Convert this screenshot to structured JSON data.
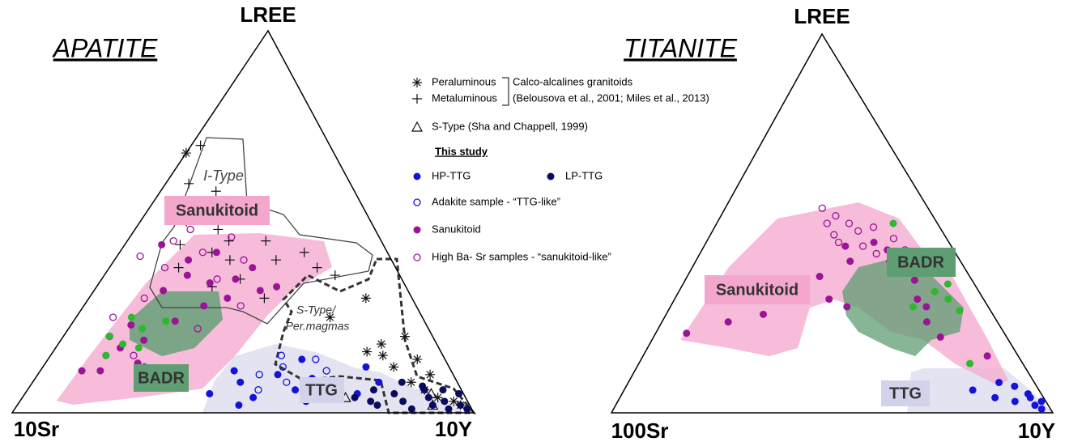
{
  "chart_data": [
    {
      "type": "ternary",
      "title": "APATITE",
      "corners": {
        "top": "LREE",
        "left": "10Sr",
        "right": "10Y"
      },
      "annotations": [
        "I-Type",
        "Sanukitoid",
        "S-Type/",
        "Per.magmas",
        "BADR",
        "TTG"
      ],
      "series": [
        {
          "name": "Peraluminous",
          "marker": "asterisk",
          "color": "#111111",
          "lree": [
            68,
            18,
            15,
            20,
            12,
            16,
            8,
            6,
            4,
            10,
            25,
            14,
            3,
            2,
            30
          ],
          "y": [
            0,
            70,
            72,
            74,
            76,
            68,
            82,
            86,
            90,
            85,
            55,
            80,
            94,
            96,
            60
          ]
        },
        {
          "name": "Metaluminous",
          "marker": "plus",
          "color": "#111111",
          "lree": [
            70,
            60,
            55,
            50,
            52,
            48,
            45,
            42,
            40,
            38,
            58,
            45,
            35,
            38,
            36,
            42,
            40,
            30,
            33,
            44
          ],
          "y": [
            2,
            5,
            8,
            10,
            15,
            18,
            22,
            20,
            25,
            15,
            12,
            30,
            30,
            45,
            50,
            40,
            35,
            38,
            25,
            12
          ]
        },
        {
          "name": "S-Type (Sha and Chappell, 1999)",
          "marker": "triangle-open",
          "color": "#111111",
          "lree": [
            7,
            4,
            2,
            5
          ],
          "y": [
            60,
            70,
            90,
            88
          ]
        },
        {
          "name": "HP-TTG",
          "marker": "circle",
          "color": "#1414d8",
          "lree": [
            5,
            8,
            4,
            10,
            6,
            3,
            7,
            12,
            5,
            9,
            14,
            2,
            11,
            4,
            8
          ],
          "y": [
            40,
            45,
            50,
            52,
            58,
            62,
            65,
            70,
            72,
            60,
            55,
            48,
            42,
            68,
            75
          ]
        },
        {
          "name": "LP-TTG",
          "marker": "circle",
          "color": "#0b0b5e",
          "lree": [
            4,
            6,
            2,
            5,
            3,
            7,
            1,
            4,
            2,
            6,
            3,
            1,
            5,
            2,
            1,
            8,
            3,
            6
          ],
          "y": [
            72,
            75,
            78,
            80,
            83,
            85,
            86,
            88,
            90,
            90,
            92,
            94,
            94,
            96,
            98,
            80,
            76,
            86
          ]
        },
        {
          "name": "Adakite sample - “TTG-like”",
          "marker": "circle-open",
          "color": "#1414d8",
          "lree": [
            10,
            12,
            8,
            14,
            6,
            11,
            15
          ],
          "y": [
            48,
            52,
            55,
            58,
            50,
            62,
            50
          ]
        },
        {
          "name": "Sanukitoid",
          "marker": "circle",
          "color": "#9c1496",
          "lree": [
            11,
            15,
            23,
            32,
            36,
            34,
            35,
            32,
            33,
            38,
            30,
            28,
            24,
            19,
            17,
            44,
            40,
            42,
            13,
            11
          ],
          "y": [
            9,
            12,
            13,
            15,
            18,
            24,
            29,
            36,
            39,
            31,
            30,
            26,
            22,
            18,
            14,
            8,
            16,
            21,
            20,
            13
          ]
        },
        {
          "name": "High Ba- Sr samples - “sanukitoid-like”",
          "marker": "circle-open",
          "color": "#9c1496",
          "lree": [
            41,
            45,
            38,
            25,
            20,
            30,
            42,
            48,
            35,
            15,
            12,
            28,
            22,
            46,
            40
          ],
          "y": [
            5,
            10,
            12,
            8,
            10,
            12,
            18,
            12,
            25,
            18,
            22,
            34,
            28,
            22,
            28
          ]
        },
        {
          "marker": "circle",
          "color": "#2db82d",
          "lree": [
            15,
            18,
            20,
            22,
            25,
            17,
            24
          ],
          "y": [
            12,
            14,
            10,
            16,
            12,
            18,
            20
          ]
        }
      ]
    },
    {
      "type": "ternary",
      "title": "TITANITE",
      "corners": {
        "top": "LREE",
        "left": "100Sr",
        "right": "10Y"
      },
      "annotations": [
        "Sanukitoid",
        "BADR",
        "TTG"
      ],
      "series": [
        {
          "marker": "circle",
          "color": "#1414d8",
          "lree": [
            6,
            4,
            7,
            3,
            5,
            2,
            1,
            3,
            8,
            4
          ],
          "y": [
            79,
            85,
            88,
            90,
            92,
            95,
            97,
            96,
            84,
            93
          ]
        },
        {
          "marker": "circle",
          "color": "#9c1496",
          "lree": [
            21,
            26,
            24,
            32,
            35,
            40,
            45,
            43,
            41,
            38,
            35,
            30,
            28,
            24,
            20,
            15,
            30,
            28,
            36,
            44
          ],
          "y": [
            7,
            22,
            15,
            28,
            25,
            35,
            38,
            42,
            45,
            48,
            52,
            55,
            58,
            60,
            65,
            78,
            35,
            40,
            30,
            32
          ]
        },
        {
          "marker": "circle-open",
          "color": "#9c1496",
          "lree": [
            54,
            50,
            47,
            45,
            48,
            44,
            42,
            46,
            52,
            40,
            38,
            43,
            50,
            49
          ],
          "y": [
            22,
            25,
            28,
            30,
            33,
            36,
            40,
            42,
            26,
            44,
            48,
            46,
            30,
            36
          ]
        },
        {
          "marker": "circle",
          "color": "#2db82d",
          "lree": [
            34,
            30,
            28,
            13,
            50,
            27,
            32
          ],
          "y": [
            60,
            62,
            55,
            75,
            40,
            66,
            58
          ]
        }
      ]
    }
  ],
  "legend": {
    "group_label": "Calco-alcalines granitoids",
    "reference": "(Belousova et al., 2001; Miles et al., 2013)",
    "subheading": "This study"
  }
}
